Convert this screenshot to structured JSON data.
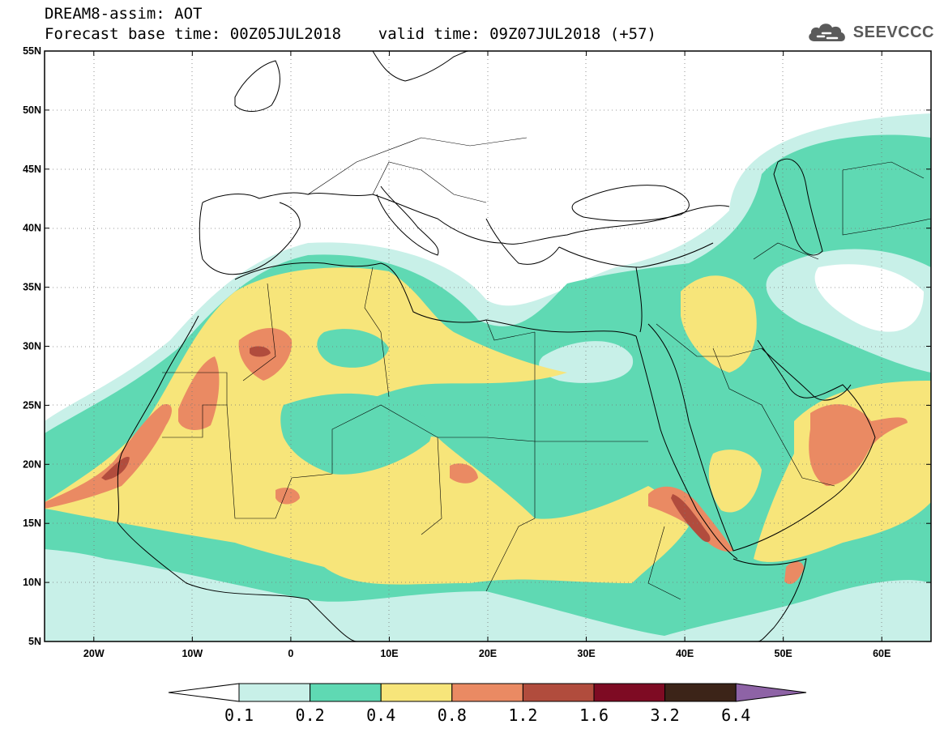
{
  "header": {
    "title": "DREAM8-assim: AOT",
    "subtitle": "Forecast base time: 00Z05JUL2018    valid time: 09Z07JUL2018 (+57)"
  },
  "logo": {
    "text": "SEEVCCC",
    "icon": "cloud-icon",
    "color": "#5a5a5a"
  },
  "map": {
    "lon_range": [
      -25,
      65
    ],
    "lat_range": [
      5,
      55
    ],
    "lat_ticks": [
      {
        "value": 55,
        "label": "55N"
      },
      {
        "value": 50,
        "label": "50N"
      },
      {
        "value": 45,
        "label": "45N"
      },
      {
        "value": 40,
        "label": "40N"
      },
      {
        "value": 35,
        "label": "35N"
      },
      {
        "value": 30,
        "label": "30N"
      },
      {
        "value": 25,
        "label": "25N"
      },
      {
        "value": 20,
        "label": "20N"
      },
      {
        "value": 15,
        "label": "15N"
      },
      {
        "value": 10,
        "label": "10N"
      },
      {
        "value": 5,
        "label": "5N"
      }
    ],
    "lon_ticks": [
      {
        "value": -20,
        "label": "20W"
      },
      {
        "value": -10,
        "label": "10W"
      },
      {
        "value": 0,
        "label": "0"
      },
      {
        "value": 10,
        "label": "10E"
      },
      {
        "value": 20,
        "label": "20E"
      },
      {
        "value": 30,
        "label": "30E"
      },
      {
        "value": 40,
        "label": "40E"
      },
      {
        "value": 50,
        "label": "50E"
      },
      {
        "value": 60,
        "label": "60E"
      }
    ],
    "grid": "dotted"
  },
  "colorbar": {
    "levels": [
      "0.1",
      "0.2",
      "0.4",
      "0.8",
      "1.2",
      "1.6",
      "3.2",
      "6.4"
    ],
    "colors": [
      "#ffffff",
      "#c8f0e8",
      "#5fd9b3",
      "#f7e57a",
      "#ea8a63",
      "#b14c3d",
      "#7e0b23",
      "#3c2418",
      "#8e63a6"
    ]
  }
}
